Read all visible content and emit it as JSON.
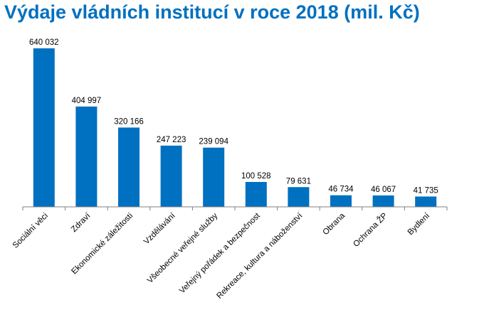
{
  "chart_data": {
    "type": "bar",
    "title": "Výdaje vládních institucí v roce 2018 (mil. Kč)",
    "categories": [
      "Sociální věci",
      "Zdraví",
      "Ekonomické záležitosti",
      "Vzdělávání",
      "Všeobecné veřejné služby",
      "Veřejný pořádek a bezpečnost",
      "Rekreace, kultura a náboženství",
      "Obrana",
      "Ochrana ŽP",
      "Bydlení"
    ],
    "values": [
      640032,
      404997,
      320166,
      247223,
      239094,
      100528,
      79631,
      46734,
      46067,
      41735
    ],
    "value_labels": [
      "640 032",
      "404 997",
      "320 166",
      "247 223",
      "239 094",
      "100 528",
      "79 631",
      "46 734",
      "46 067",
      "41 735"
    ],
    "xlabel": "",
    "ylabel": "",
    "ylim": [
      0,
      640032
    ],
    "grid": false,
    "legend": "none",
    "bar_color": "#0070c0",
    "title_color": "#0070c0",
    "axis_color": "#7f7f7f"
  }
}
